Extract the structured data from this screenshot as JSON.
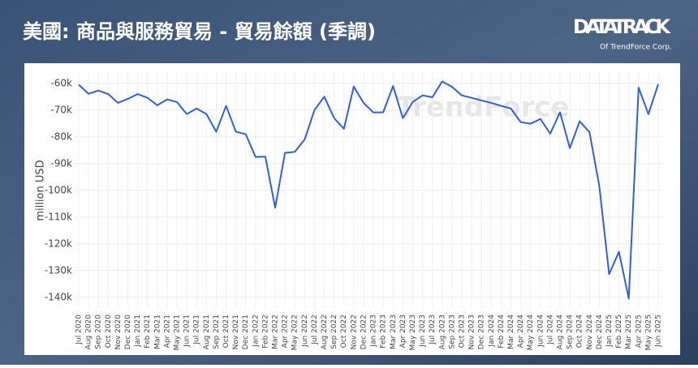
{
  "brand": {
    "name": "DATATRACK",
    "sub": "Of TrendForce Corp."
  },
  "watermark": "TrendForce",
  "chart_data": {
    "type": "line",
    "title": "美國: 商品與服務貿易 - 貿易餘額 (季調)",
    "y_label": "million USD",
    "categories": [
      "Jul 2020",
      "Aug 2020",
      "Sep 2020",
      "Oct 2020",
      "Nov 2020",
      "Dec 2020",
      "Jan 2021",
      "Feb 2021",
      "Mar 2021",
      "Apr 2021",
      "May 2021",
      "Jun 2021",
      "Jul 2021",
      "Aug 2021",
      "Sep 2021",
      "Oct 2021",
      "Nov 2021",
      "Dec 2021",
      "Jan 2022",
      "Feb 2022",
      "Mar 2022",
      "Apr 2022",
      "May 2022",
      "Jun 2022",
      "Jul 2022",
      "Aug 2022",
      "Sep 2022",
      "Oct 2022",
      "Nov 2022",
      "Dec 2022",
      "Jan 2023",
      "Feb 2023",
      "Mar 2023",
      "Apr 2023",
      "May 2023",
      "Jun 2023",
      "Jul 2023",
      "Aug 2023",
      "Sep 2023",
      "Oct 2023",
      "Nov 2023",
      "Dec 2023",
      "Jan 2024",
      "Feb 2024",
      "Mar 2024",
      "Apr 2024",
      "May 2024",
      "Jun 2024",
      "Jul 2024",
      "Aug 2024",
      "Sep 2024",
      "Oct 2024",
      "Nov 2024",
      "Dec 2024",
      "Jan 2025",
      "Feb 2025",
      "Mar 2025",
      "Apr 2025",
      "May 2025",
      "Jun 2025"
    ],
    "values": [
      -60500,
      -63900,
      -62700,
      -64000,
      -67300,
      -65800,
      -64000,
      -65400,
      -68200,
      -66000,
      -67000,
      -71500,
      -69400,
      -71500,
      -78100,
      -68400,
      -78100,
      -79000,
      -87500,
      -87400,
      -106500,
      -86000,
      -85600,
      -81000,
      -70000,
      -65000,
      -73000,
      -77000,
      -61200,
      -67300,
      -70900,
      -70800,
      -61000,
      -73000,
      -67000,
      -64500,
      -65200,
      -59300,
      -61300,
      -64500,
      -65400,
      -66400,
      -67300,
      -68400,
      -69400,
      -74500,
      -75100,
      -73300,
      -78800,
      -70800,
      -84200,
      -74200,
      -78200,
      -98400,
      -131300,
      -123000,
      -140500,
      -61600,
      -71500,
      -60300
    ],
    "color": "#2f5fe0",
    "ylim": [
      -144000,
      -55500
    ],
    "yticks": [
      {
        "value": -140000,
        "label": "-140k"
      },
      {
        "value": -130000,
        "label": "-130k"
      },
      {
        "value": -120000,
        "label": "-120k"
      },
      {
        "value": -110000,
        "label": "-110k"
      },
      {
        "value": -100000,
        "label": "-100k"
      },
      {
        "value": -90000,
        "label": "-90k"
      },
      {
        "value": -80000,
        "label": "-80k"
      },
      {
        "value": -70000,
        "label": "-70k"
      },
      {
        "value": -60000,
        "label": "-60k"
      }
    ],
    "grid": true
  }
}
